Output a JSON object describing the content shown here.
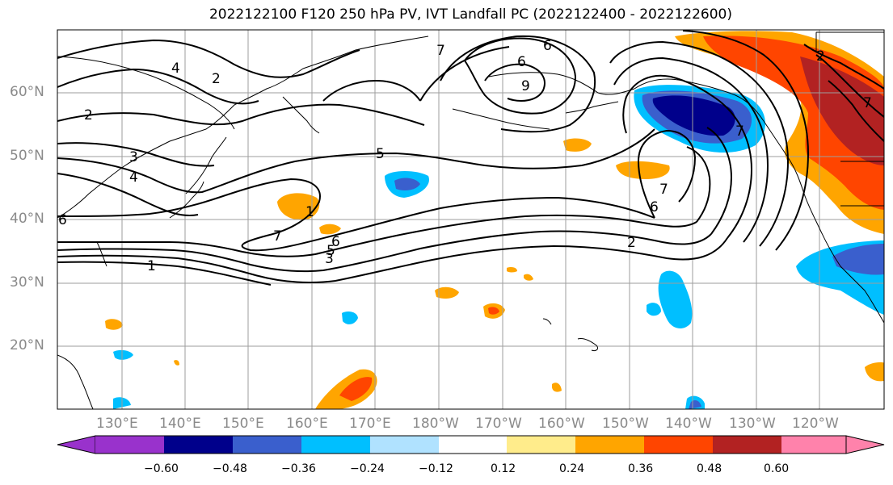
{
  "title": "2022122100 F120 250 hPa PV, IVT Landfall PC (2022122400 - 2022122600)",
  "lat_labels": [
    "60°N",
    "50°N",
    "40°N",
    "30°N",
    "20°N"
  ],
  "lon_labels": [
    "130°E",
    "140°E",
    "150°E",
    "160°E",
    "170°E",
    "180°W",
    "170°W",
    "160°W",
    "150°W",
    "140°W",
    "130°W",
    "120°W"
  ],
  "colorbar": {
    "ticks": [
      "−0.60",
      "−0.48",
      "−0.36",
      "−0.24",
      "−0.12",
      "0.12",
      "0.24",
      "0.36",
      "0.48",
      "0.60"
    ],
    "colors": [
      "#9932cc",
      "#00008b",
      "#3a5fcd",
      "#00bfff",
      "#b0e2ff",
      "#ffffff",
      "#ffec8b",
      "#ffa500",
      "#ff4500",
      "#b22222",
      "#ff82ab"
    ]
  },
  "contour_labels": [
    "2",
    "4",
    "2",
    "3",
    "4",
    "5",
    "6",
    "6",
    "9",
    "7",
    "1",
    "7",
    "6",
    "5",
    "3",
    "1",
    "7",
    "6",
    "2",
    "7",
    "2",
    "7",
    "6"
  ]
}
